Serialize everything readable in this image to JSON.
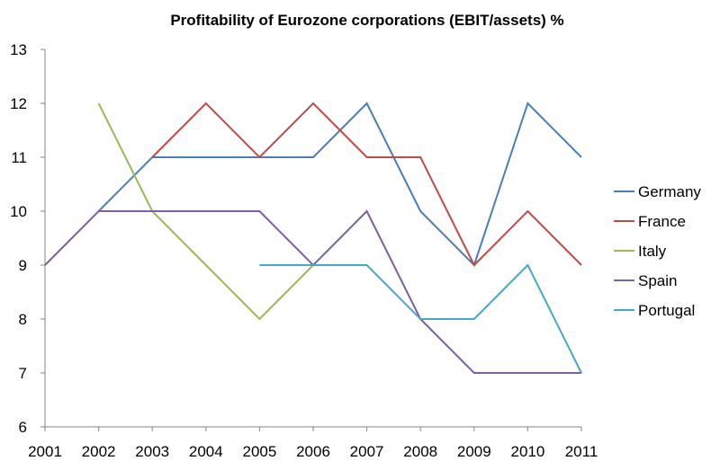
{
  "chart_data": {
    "type": "line",
    "title": "Profitability of Eurozone corporations (EBIT/assets) %",
    "xlabel": "",
    "ylabel": "",
    "x": [
      2001,
      2002,
      2003,
      2004,
      2005,
      2006,
      2007,
      2008,
      2009,
      2010,
      2011
    ],
    "x_tick_labels": [
      "2001",
      "2002",
      "2003",
      "2004",
      "2005",
      "2006",
      "2007",
      "2008",
      "2009",
      "2010",
      "2011"
    ],
    "ylim": [
      6,
      13
    ],
    "y_ticks": [
      6,
      7,
      8,
      9,
      10,
      11,
      12,
      13
    ],
    "y_tick_labels": [
      "6",
      "7",
      "8",
      "9",
      "10",
      "11",
      "12",
      "13"
    ],
    "grid": false,
    "legend_position": "right",
    "series": [
      {
        "name": "Germany",
        "color": "#4a7ebb",
        "values": [
          null,
          10,
          11,
          11,
          11,
          11,
          12,
          10,
          9,
          12,
          11
        ]
      },
      {
        "name": "France",
        "color": "#be4b48",
        "values": [
          null,
          null,
          11,
          12,
          11,
          12,
          11,
          11,
          9,
          10,
          9
        ]
      },
      {
        "name": "Italy",
        "color": "#98b954",
        "values": [
          null,
          12,
          10,
          9,
          8,
          9,
          null,
          null,
          null,
          null,
          null
        ]
      },
      {
        "name": "Spain",
        "color": "#7d60a0",
        "values": [
          9,
          10,
          10,
          10,
          10,
          9,
          10,
          8,
          7,
          7,
          7
        ]
      },
      {
        "name": "Portugal",
        "color": "#46aac5",
        "values": [
          null,
          null,
          null,
          null,
          9,
          9,
          9,
          8,
          8,
          9,
          7
        ]
      }
    ]
  }
}
